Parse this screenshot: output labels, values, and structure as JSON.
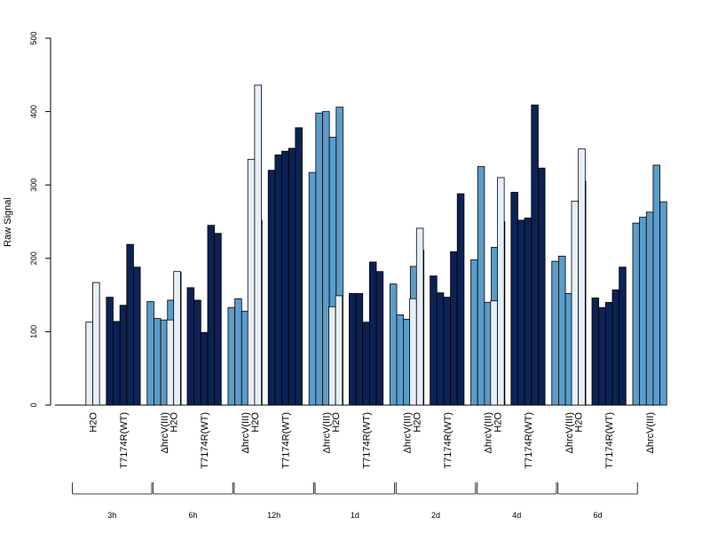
{
  "chart_data": {
    "type": "bar",
    "ylabel": "Raw Signal",
    "ylim": [
      0,
      500
    ],
    "yticks": [
      0,
      100,
      200,
      300,
      400,
      500
    ],
    "grid": false,
    "condition_labels": [
      "H2O",
      "T7174R(WT)",
      "ΔhrcV(III)"
    ],
    "condition_colors": {
      "H2O": "#e6eef8",
      "T7174R(WT)": "#0c2254",
      "ΔhrcV(III)": "#5b9cc9"
    },
    "groups": [
      {
        "time": "3h",
        "H2O": [
          113,
          167
        ],
        "T7174R(WT)": [
          147,
          114,
          136,
          219,
          188
        ],
        "ΔhrcV(III)": [
          141,
          118,
          116,
          143,
          181
        ]
      },
      {
        "time": "6h",
        "H2O": [
          116,
          182
        ],
        "T7174R(WT)": [
          160,
          143,
          99,
          245,
          234
        ],
        "ΔhrcV(III)": [
          133,
          145,
          128,
          231,
          252
        ]
      },
      {
        "time": "12h",
        "H2O": [
          335,
          436
        ],
        "T7174R(WT)": [
          320,
          341,
          346,
          350,
          378
        ],
        "ΔhrcV(III)": [
          317,
          398,
          400,
          365,
          406
        ]
      },
      {
        "time": "1d",
        "H2O": [
          134,
          149
        ],
        "T7174R(WT)": [
          152,
          152,
          113,
          195,
          182
        ],
        "ΔhrcV(III)": [
          165,
          123,
          117,
          189,
          211
        ]
      },
      {
        "time": "2d",
        "H2O": [
          145,
          241
        ],
        "T7174R(WT)": [
          176,
          153,
          147,
          209,
          288
        ],
        "ΔhrcV(III)": [
          198,
          325,
          140,
          215,
          250
        ]
      },
      {
        "time": "4d",
        "H2O": [
          142,
          310
        ],
        "T7174R(WT)": [
          290,
          252,
          255,
          409,
          323
        ],
        "ΔhrcV(III)": [
          196,
          203,
          152,
          256,
          305
        ]
      },
      {
        "time": "6d",
        "H2O": [
          278,
          349
        ],
        "T7174R(WT)": [
          146,
          133,
          140,
          157,
          188
        ],
        "ΔhrcV(III)": [
          248,
          256,
          263,
          327,
          277
        ]
      }
    ]
  }
}
